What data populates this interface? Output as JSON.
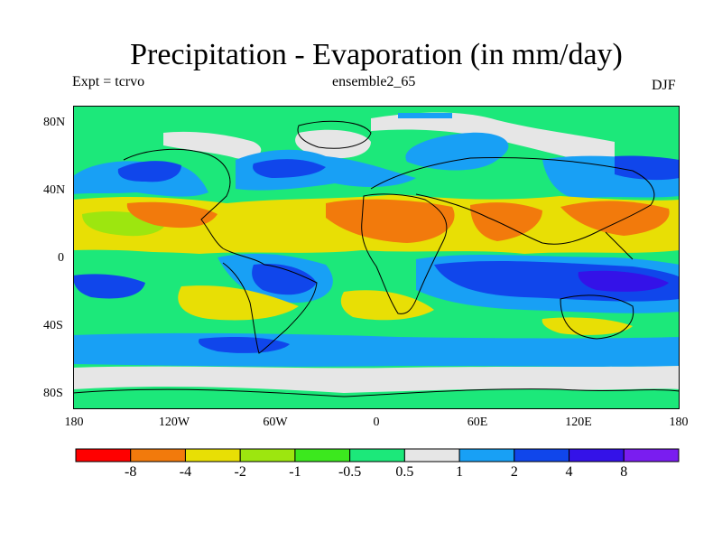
{
  "header": {
    "title": "Precipitation - Evaporation (in mm/day)",
    "expt_label": "Expt = tcrvo",
    "ensemble_label": "ensemble2_65",
    "season_label": "DJF"
  },
  "axes": {
    "y_ticks": [
      "80N",
      "40N",
      "0",
      "40S",
      "80S"
    ],
    "x_ticks": [
      "180",
      "120W",
      "60W",
      "0",
      "60E",
      "120E",
      "180"
    ]
  },
  "colorbar": {
    "colors": [
      "#ff0000",
      "#f27a0c",
      "#e8df05",
      "#9de60f",
      "#3ce81e",
      "#1ce87a",
      "#e6e6e6",
      "#18a0f5",
      "#1046eb",
      "#3412e8",
      "#7a1df0"
    ],
    "labels": [
      "-8",
      "-4",
      "-2",
      "-1",
      "-0.5",
      "0.5",
      "1",
      "2",
      "4",
      "8"
    ]
  },
  "colors": {
    "land_outline": "#000000",
    "frame": "#000000"
  }
}
